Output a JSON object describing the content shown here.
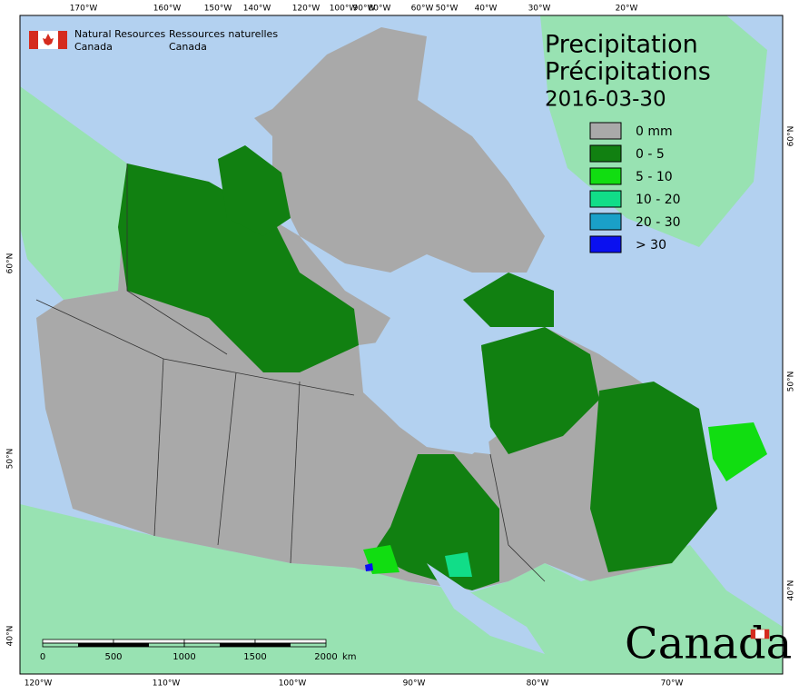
{
  "header": {
    "en": [
      "Natural Resources",
      "Canada"
    ],
    "fr": [
      "Ressources naturelles",
      "Canada"
    ]
  },
  "title": {
    "lines": [
      "Precipitation",
      "Précipitations"
    ],
    "date": "2016-03-30"
  },
  "legend": [
    {
      "label": "0 mm",
      "color": "#a9a9a9"
    },
    {
      "label": "0 - 5",
      "color": "#118011"
    },
    {
      "label": "5 - 10",
      "color": "#11dd11"
    },
    {
      "label": "10 - 20",
      "color": "#11dd88"
    },
    {
      "label": "20 - 30",
      "color": "#1aa0c8"
    },
    {
      "label": "> 30",
      "color": "#0a10f0"
    }
  ],
  "graticule": {
    "top": [
      "170°W",
      "160°W",
      "150°W",
      "140°W",
      "120°W",
      "100°W",
      "90°W",
      "80°W",
      "60°W",
      "50°W",
      "40°W",
      "30°W",
      "20°W"
    ],
    "bottom": [
      "120°W",
      "110°W",
      "100°W",
      "90°W",
      "80°W",
      "70°W"
    ],
    "left": [
      "60°N",
      "50°N",
      "40°N"
    ],
    "right": [
      "60°N",
      "50°N",
      "40°N"
    ]
  },
  "scale_bar": {
    "ticks": [
      "0",
      "500",
      "1000",
      "1500",
      "2000"
    ],
    "unit": "km"
  },
  "wordmark": "Canada"
}
